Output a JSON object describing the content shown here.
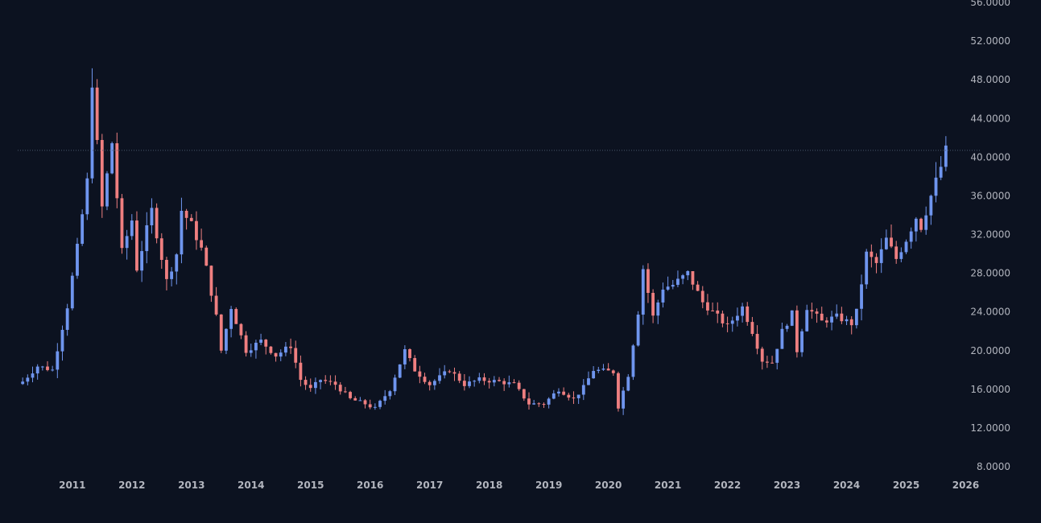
{
  "chart_data": {
    "type": "candlestick",
    "interval": "monthly",
    "xlabel": "",
    "ylabel": "",
    "ylim": [
      8,
      56
    ],
    "xlim": [
      "2010-02",
      "2026-04"
    ],
    "y_ticks": [
      "8.0000",
      "12.0000",
      "16.0000",
      "20.0000",
      "24.0000",
      "28.0000",
      "32.0000",
      "36.0000",
      "40.0000",
      "44.0000",
      "48.0000",
      "52.0000",
      "56.0000"
    ],
    "x_ticks": [
      "2011",
      "2012",
      "2013",
      "2014",
      "2015",
      "2016",
      "2017",
      "2018",
      "2019",
      "2020",
      "2021",
      "2022",
      "2023",
      "2024",
      "2025",
      "2026"
    ],
    "last_price_line": 40.7,
    "grid": false,
    "legend": "none",
    "colors": {
      "up": "#6f95ee",
      "down": "#ef7f80",
      "background": "#0c1220",
      "price_line": "#4a5a6c",
      "text": "#b2b5be"
    },
    "keypoints": [
      [
        "2010-03",
        16.8
      ],
      [
        "2010-06",
        18.4
      ],
      [
        "2010-09",
        18.0
      ],
      [
        "2010-12",
        24.6
      ],
      [
        "2011-02",
        30.6
      ],
      [
        "2011-04",
        37.5
      ],
      [
        "2011-05",
        47.8
      ],
      [
        "2011-07",
        34.8
      ],
      [
        "2011-09",
        41.5
      ],
      [
        "2011-11",
        30.2
      ],
      [
        "2012-01",
        33.5
      ],
      [
        "2012-02",
        28.5
      ],
      [
        "2012-05",
        34.5
      ],
      [
        "2012-08",
        27.2
      ],
      [
        "2012-10",
        30.0
      ],
      [
        "2012-11",
        34.5
      ],
      [
        "2013-01",
        33.0
      ],
      [
        "2013-03",
        30.5
      ],
      [
        "2013-04",
        28.5
      ],
      [
        "2013-06",
        23.5
      ],
      [
        "2013-07",
        20.0
      ],
      [
        "2013-09",
        24.5
      ],
      [
        "2013-12",
        20.0
      ],
      [
        "2014-03",
        21.0
      ],
      [
        "2014-06",
        19.5
      ],
      [
        "2014-09",
        20.5
      ],
      [
        "2014-11",
        17.0
      ],
      [
        "2015-01",
        16.0
      ],
      [
        "2015-03",
        17.0
      ],
      [
        "2015-06",
        16.5
      ],
      [
        "2015-09",
        15.0
      ],
      [
        "2015-12",
        14.5
      ],
      [
        "2016-02",
        14.0
      ],
      [
        "2016-05",
        16.0
      ],
      [
        "2016-08",
        20.0
      ],
      [
        "2016-10",
        18.0
      ],
      [
        "2017-01",
        16.5
      ],
      [
        "2017-05",
        18.0
      ],
      [
        "2017-08",
        16.5
      ],
      [
        "2017-11",
        17.0
      ],
      [
        "2018-03",
        16.8
      ],
      [
        "2018-06",
        16.5
      ],
      [
        "2018-09",
        14.5
      ],
      [
        "2018-12",
        14.5
      ],
      [
        "2019-03",
        16.0
      ],
      [
        "2019-06",
        15.0
      ],
      [
        "2019-08",
        16.2
      ],
      [
        "2019-10",
        18.0
      ],
      [
        "2020-02",
        17.8
      ],
      [
        "2020-03",
        14.2
      ],
      [
        "2020-05",
        17.5
      ],
      [
        "2020-07",
        24.0
      ],
      [
        "2020-08",
        28.5
      ],
      [
        "2020-10",
        23.5
      ],
      [
        "2020-12",
        26.5
      ],
      [
        "2021-02",
        26.8
      ],
      [
        "2021-05",
        28.0
      ],
      [
        "2021-08",
        25.0
      ],
      [
        "2021-11",
        23.5
      ],
      [
        "2022-01",
        22.5
      ],
      [
        "2022-04",
        24.5
      ],
      [
        "2022-06",
        22.0
      ],
      [
        "2022-08",
        19.0
      ],
      [
        "2022-10",
        18.8
      ],
      [
        "2022-12",
        22.0
      ],
      [
        "2023-02",
        23.8
      ],
      [
        "2023-03",
        20.0
      ],
      [
        "2023-05",
        24.5
      ],
      [
        "2023-08",
        23.0
      ],
      [
        "2023-11",
        23.5
      ],
      [
        "2024-02",
        22.8
      ],
      [
        "2024-03",
        24.0
      ],
      [
        "2024-05",
        30.0
      ],
      [
        "2024-07",
        29.0
      ],
      [
        "2024-09",
        31.5
      ],
      [
        "2024-11",
        29.5
      ],
      [
        "2025-01",
        31.5
      ],
      [
        "2025-03",
        33.8
      ],
      [
        "2025-04",
        32.8
      ],
      [
        "2025-06",
        36.0
      ],
      [
        "2025-08",
        39.0
      ],
      [
        "2025-09",
        40.7
      ]
    ]
  }
}
